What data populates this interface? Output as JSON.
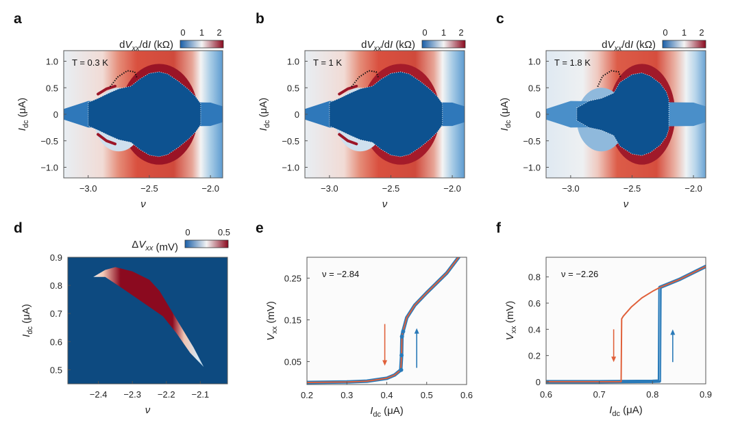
{
  "chart_data": [
    {
      "panel": "a",
      "type": "heatmap",
      "annotation": "T = 0.3 K",
      "xlabel": "ν",
      "ylabel": {
        "var": "I",
        "sub": "dc",
        "unit": " (μA)"
      },
      "xlim": [
        -3.2,
        -1.9
      ],
      "ylim": [
        -1.2,
        1.2
      ],
      "xticks": [
        -3.0,
        -2.5,
        -2.0
      ],
      "xtick_labels": [
        "−3.0",
        "−2.5",
        "−2.0"
      ],
      "yticks": [
        1.0,
        0.5,
        0,
        -0.5,
        -1.0
      ],
      "ytick_labels": [
        "1.0",
        "0.5",
        "0",
        "−0.5",
        "−1.0"
      ],
      "colorbar": {
        "pre": "d",
        "var": "V",
        "sub": "xx",
        "post": "/d",
        "var2": "I",
        "unit": " (kΩ)",
        "range": [
          0,
          2
        ],
        "ticks": [
          "0",
          "1",
          "2"
        ],
        "colors": [
          "#1a5fa8",
          "#f4f4f4",
          "#8b0a1f"
        ]
      }
    },
    {
      "panel": "b",
      "type": "heatmap",
      "annotation": "T = 1 K",
      "xlabel": "ν",
      "ylabel": {
        "var": "I",
        "sub": "dc",
        "unit": " (μA)"
      },
      "xlim": [
        -3.2,
        -1.9
      ],
      "ylim": [
        -1.2,
        1.2
      ],
      "xticks": [
        -3.0,
        -2.5,
        -2.0
      ],
      "xtick_labels": [
        "−3.0",
        "−2.5",
        "−2.0"
      ],
      "yticks": [
        1.0,
        0.5,
        0,
        -0.5,
        -1.0
      ],
      "ytick_labels": [
        "1.0",
        "0.5",
        "0",
        "−0.5",
        "−1.0"
      ],
      "colorbar": {
        "pre": "d",
        "var": "V",
        "sub": "xx",
        "post": "/d",
        "var2": "I",
        "unit": " (kΩ)",
        "range": [
          0,
          2
        ],
        "ticks": [
          "0",
          "1",
          "2"
        ],
        "colors": [
          "#1a5fa8",
          "#f4f4f4",
          "#8b0a1f"
        ]
      }
    },
    {
      "panel": "c",
      "type": "heatmap",
      "annotation": "T = 1.8 K",
      "xlabel": "ν",
      "ylabel": {
        "var": "I",
        "sub": "dc",
        "unit": " (μA)"
      },
      "xlim": [
        -3.2,
        -1.9
      ],
      "ylim": [
        -1.2,
        1.2
      ],
      "xticks": [
        -3.0,
        -2.5,
        -2.0
      ],
      "xtick_labels": [
        "−3.0",
        "−2.5",
        "−2.0"
      ],
      "yticks": [
        1.0,
        0.5,
        0,
        -0.5,
        -1.0
      ],
      "ytick_labels": [
        "1.0",
        "0.5",
        "0",
        "−0.5",
        "−1.0"
      ],
      "colorbar": {
        "pre": "d",
        "var": "V",
        "sub": "xx",
        "post": "/d",
        "var2": "I",
        "unit": " (kΩ)",
        "range": [
          0,
          2
        ],
        "ticks": [
          "0",
          "1",
          "2"
        ],
        "colors": [
          "#1a5fa8",
          "#f4f4f4",
          "#8b0a1f"
        ]
      }
    },
    {
      "panel": "d",
      "type": "heatmap",
      "annotation": "",
      "xlabel": "ν",
      "ylabel": {
        "var": "I",
        "sub": "dc",
        "unit": " (μA)"
      },
      "xlim": [
        -2.49,
        -2.02
      ],
      "ylim": [
        0.45,
        0.9
      ],
      "xticks": [
        -2.4,
        -2.3,
        -2.2,
        -2.1
      ],
      "xtick_labels": [
        "−2.4",
        "−2.3",
        "−2.2",
        "−2.1"
      ],
      "yticks": [
        0.9,
        0.8,
        0.7,
        0.6,
        0.5
      ],
      "ytick_labels": [
        "0.9",
        "0.8",
        "0.7",
        "0.6",
        "0.5"
      ],
      "colorbar": {
        "pre": "Δ",
        "var": "V",
        "sub": "xx",
        "post": "",
        "var2": "",
        "unit": " (mV)",
        "range": [
          0,
          0.5
        ],
        "ticks": [
          "0",
          "0.5"
        ],
        "colors": [
          "#1a5fa8",
          "#f4f4f4",
          "#8b0a1f"
        ]
      }
    },
    {
      "panel": "e",
      "type": "line",
      "annotation": "ν = −2.84",
      "xlabel": {
        "var": "I",
        "sub": "dc",
        "unit": " (μA)"
      },
      "ylabel": {
        "var": "V",
        "sub": "xx",
        "unit": " (mV)"
      },
      "xlim": [
        0.2,
        0.6
      ],
      "ylim": [
        -0.005,
        0.3
      ],
      "xticks": [
        0.2,
        0.3,
        0.4,
        0.5,
        0.6
      ],
      "xtick_labels": [
        "0.2",
        "0.3",
        "0.4",
        "0.5",
        "0.6"
      ],
      "yticks": [
        0.25,
        0.15,
        0.05
      ],
      "ytick_labels": [
        "0.25",
        "0.15",
        "0.05"
      ],
      "series": [
        {
          "direction": "up",
          "color": "#2a7ab8",
          "x": [
            0.2,
            0.3,
            0.35,
            0.4,
            0.42,
            0.435,
            0.437,
            0.438,
            0.44,
            0.45,
            0.47,
            0.5,
            0.55,
            0.58
          ],
          "y": [
            0.0,
            0.001,
            0.003,
            0.01,
            0.018,
            0.03,
            0.065,
            0.11,
            0.12,
            0.155,
            0.185,
            0.215,
            0.262,
            0.3
          ]
        },
        {
          "direction": "down",
          "color": "#e0603a",
          "x": [
            0.58,
            0.55,
            0.5,
            0.47,
            0.45,
            0.44,
            0.438,
            0.437,
            0.435,
            0.42,
            0.4,
            0.35,
            0.3,
            0.2
          ],
          "y": [
            0.3,
            0.262,
            0.215,
            0.185,
            0.155,
            0.12,
            0.11,
            0.065,
            0.03,
            0.018,
            0.01,
            0.003,
            0.001,
            0.0
          ]
        }
      ],
      "arrows": [
        {
          "color": "#e0603a",
          "x": 0.395,
          "from": 0.14,
          "to": 0.04
        },
        {
          "color": "#2a7ab8",
          "x": 0.475,
          "from": 0.035,
          "to": 0.13
        }
      ]
    },
    {
      "panel": "f",
      "type": "line",
      "annotation": "ν = −2.26",
      "xlabel": {
        "var": "I",
        "sub": "dc",
        "unit": " (μA)"
      },
      "ylabel": {
        "var": "V",
        "sub": "xx",
        "unit": " (mV)"
      },
      "xlim": [
        0.6,
        0.9
      ],
      "ylim": [
        -0.016,
        0.95
      ],
      "xticks": [
        0.6,
        0.7,
        0.8,
        0.9
      ],
      "xtick_labels": [
        "0.6",
        "0.7",
        "0.8",
        "0.9"
      ],
      "yticks": [
        0.8,
        0.6,
        0.4,
        0.2,
        0
      ],
      "ytick_labels": [
        "0.8",
        "0.6",
        "0.4",
        "0.2",
        "0"
      ],
      "series": [
        {
          "direction": "up",
          "color": "#2a7ab8",
          "x": [
            0.6,
            0.7,
            0.8,
            0.813,
            0.814,
            0.85,
            0.9
          ],
          "y": [
            0.0,
            0.0,
            0.003,
            0.005,
            0.72,
            0.78,
            0.88
          ]
        },
        {
          "direction": "down",
          "color": "#e0603a",
          "x": [
            0.9,
            0.85,
            0.814,
            0.8,
            0.78,
            0.76,
            0.745,
            0.742,
            0.741,
            0.7,
            0.6
          ],
          "y": [
            0.88,
            0.78,
            0.72,
            0.69,
            0.64,
            0.57,
            0.5,
            0.48,
            0.0,
            0.0,
            0.0
          ]
        }
      ],
      "arrows": [
        {
          "color": "#e0603a",
          "x": 0.727,
          "from": 0.4,
          "to": 0.15
        },
        {
          "color": "#2a7ab8",
          "x": 0.838,
          "from": 0.15,
          "to": 0.4
        }
      ]
    }
  ]
}
